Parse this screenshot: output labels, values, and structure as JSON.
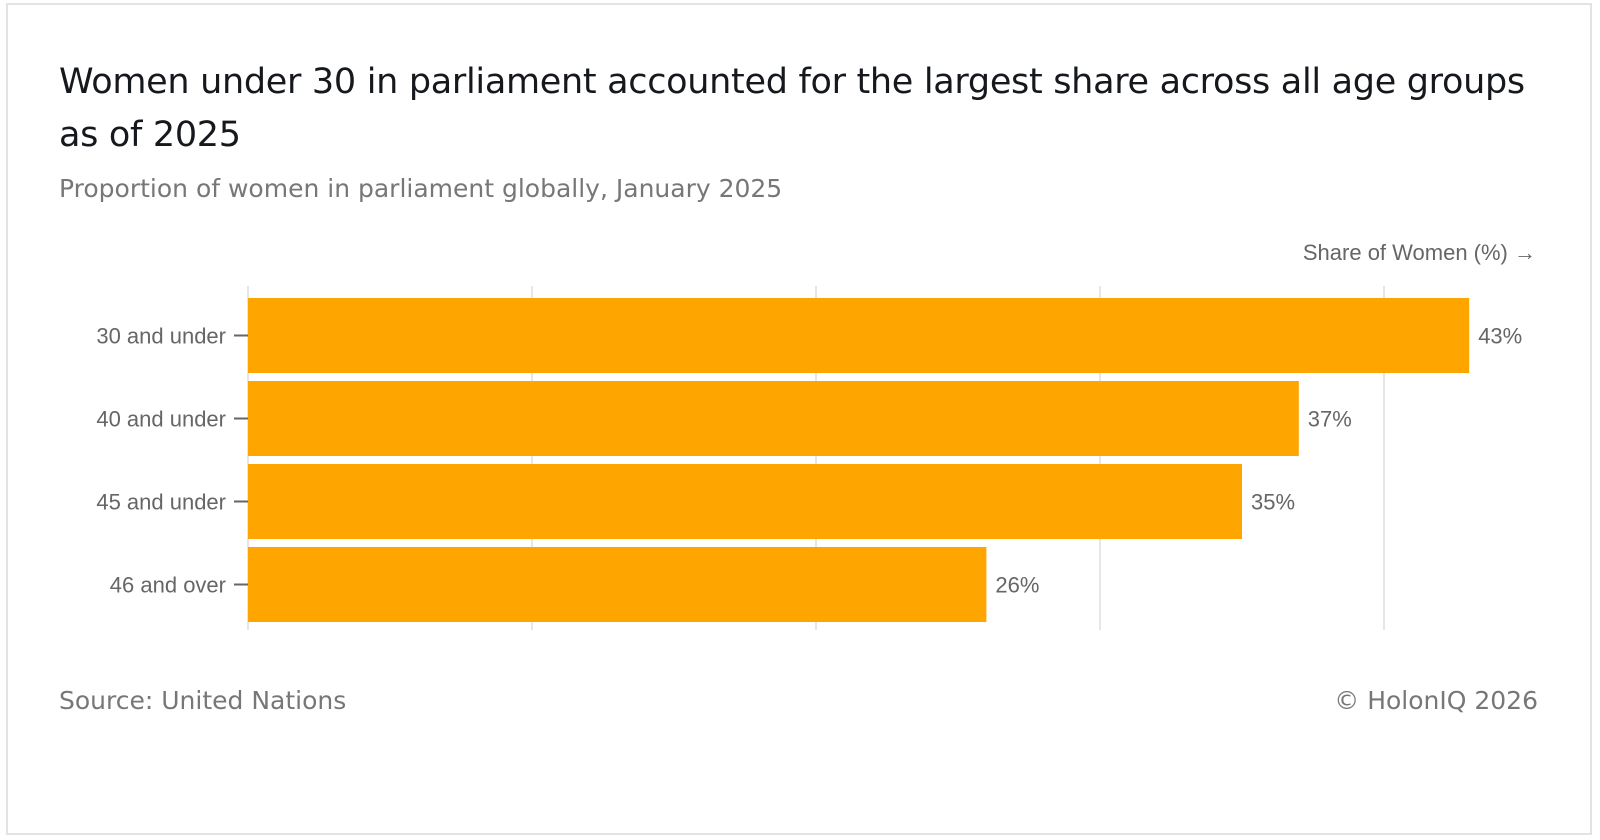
{
  "title": "Women under 30 in parliament accounted for the largest share across all age groups as of 2025",
  "subtitle": "Proportion of women in parliament globally, January 2025",
  "source": "Source: United Nations",
  "copyright": "© HolonIQ 2026",
  "chart_data": {
    "type": "bar",
    "orientation": "horizontal",
    "xlabel": "Share of Women (%) →",
    "ylabel": "",
    "categories": [
      "30 and under",
      "40 and under",
      "45 and under",
      "46 and over"
    ],
    "values": [
      43,
      37,
      35,
      26
    ],
    "value_labels": [
      "43%",
      "37%",
      "35%",
      "26%"
    ],
    "xlim": [
      0,
      40
    ],
    "gridlines_at": [
      0,
      10,
      20,
      30,
      40
    ],
    "grid": true,
    "bar_color": "#FFA500"
  }
}
